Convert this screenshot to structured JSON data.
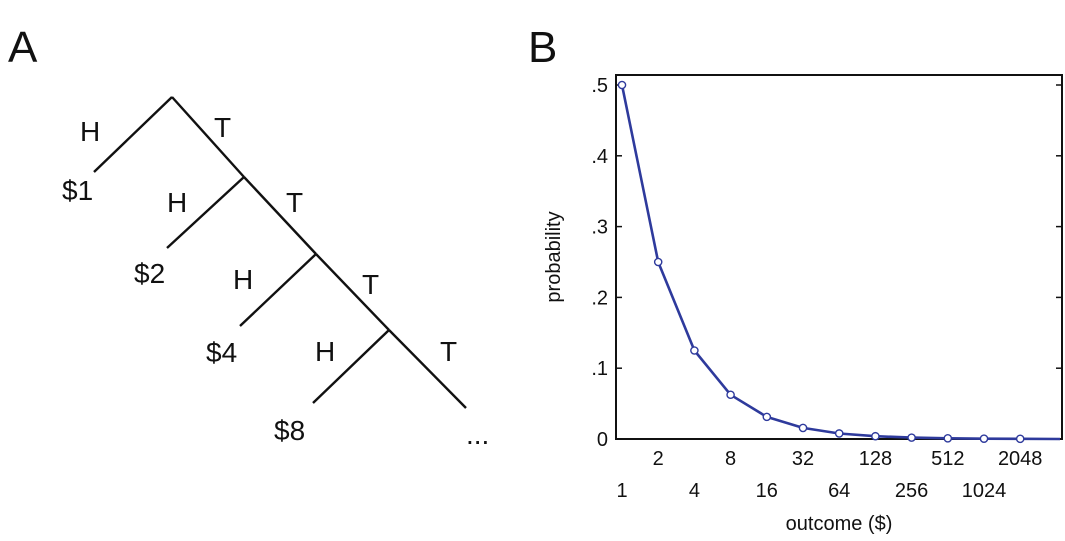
{
  "panels": {
    "a": {
      "letter": "A"
    },
    "b": {
      "letter": "B"
    }
  },
  "tree": {
    "heads_label": "H",
    "tails_label": "T",
    "payouts": [
      "$1",
      "$2",
      "$4",
      "$8"
    ],
    "ellipsis": "..."
  },
  "chart_data": {
    "type": "line",
    "title": "",
    "xlabel": "outcome ($)",
    "ylabel": "probability",
    "x": [
      1,
      2,
      4,
      8,
      16,
      32,
      64,
      128,
      256,
      512,
      1024,
      2048
    ],
    "categories": [
      "1",
      "2",
      "4",
      "8",
      "16",
      "32",
      "64",
      "128",
      "256",
      "512",
      "1024",
      "2048"
    ],
    "series": [
      {
        "values": [
          0.5,
          0.25,
          0.125,
          0.0625,
          0.03125,
          0.015625,
          0.0078125,
          0.00390625,
          0.001953125,
          0.0009765625,
          0.00048828125,
          0.000244140625
        ]
      }
    ],
    "ylim": [
      0,
      0.5
    ],
    "yticks": [
      0,
      0.1,
      0.2,
      0.3,
      0.4,
      0.5
    ],
    "ytick_labels": [
      "0",
      ".1",
      ".2",
      ".3",
      ".4",
      ".5"
    ],
    "grid": false,
    "line_color": "#2e3a9c",
    "marker": "open-circle"
  }
}
